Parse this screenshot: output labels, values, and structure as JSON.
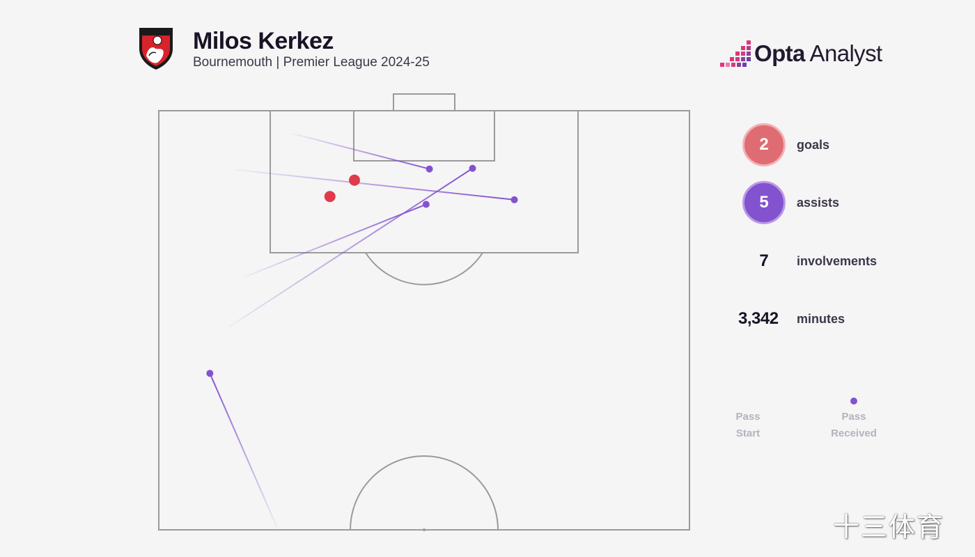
{
  "header": {
    "player_name": "Milos Kerkez",
    "subtitle": "Bournemouth | Premier League 2024-25",
    "club_crest_icon": "afc-bournemouth-crest-icon"
  },
  "brand": {
    "name_bold": "Opta",
    "name_regular": " Analyst",
    "logo_icon": "opta-pixel-logo-icon"
  },
  "stats": {
    "goals": {
      "value": "2",
      "label": "goals",
      "color": "#e06c73"
    },
    "assists": {
      "value": "5",
      "label": "assists",
      "color": "#8352cf"
    },
    "involvements": {
      "value": "7",
      "label": "involvements"
    },
    "minutes": {
      "value": "3,342",
      "label": "minutes"
    }
  },
  "legend": {
    "start_line1": "Pass",
    "start_line2": "Start",
    "end_line1": "Pass",
    "end_line2": "Received"
  },
  "watermark": "十三体育",
  "colors": {
    "background": "#f5f5f5",
    "pitch_lines": "#9a9a9a",
    "goal_marker": "#e03a4c",
    "assist_line": "#8352cf"
  },
  "chart_data": {
    "type": "scatter",
    "description_units": "pitch coordinates in yards, attacking goal at top; x = width 0-80 (left touchline to right), y = distance from opponent goal line",
    "pitch_length_shown": 64,
    "pitch_width": 80,
    "goals": [
      {
        "x": 29.5,
        "y": 10.6
      },
      {
        "x": 25.8,
        "y": 13.1
      }
    ],
    "assists": [
      {
        "start": {
          "x": 20.2,
          "y": 3.5
        },
        "end": {
          "x": 40.8,
          "y": 8.9
        }
      },
      {
        "start": {
          "x": 11.4,
          "y": 9.0
        },
        "end": {
          "x": 53.6,
          "y": 13.6
        }
      },
      {
        "start": {
          "x": 12.9,
          "y": 25.4
        },
        "end": {
          "x": 40.3,
          "y": 14.3
        }
      },
      {
        "start": {
          "x": 10.6,
          "y": 33.0
        },
        "end": {
          "x": 47.3,
          "y": 8.8
        }
      },
      {
        "start": {
          "x": 17.9,
          "y": 63.8
        },
        "end": {
          "x": 7.7,
          "y": 40.1
        }
      }
    ]
  }
}
